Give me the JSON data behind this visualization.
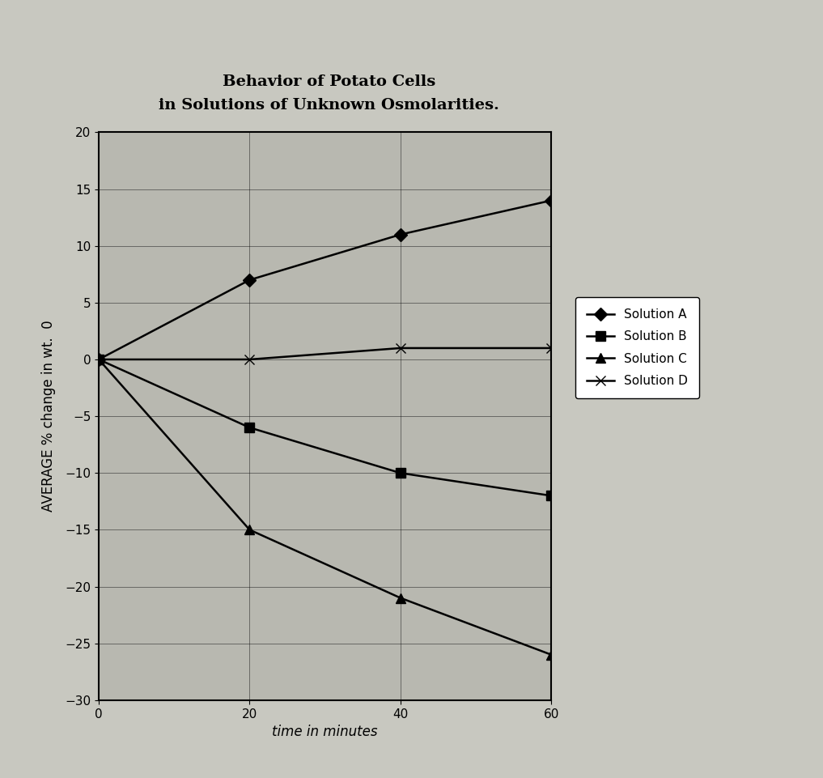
{
  "title_line1": "Behavior of Potato Cells",
  "title_line2": "in Solutions of Unknown Osmolarities.",
  "xlabel": "time in minutes",
  "ylabel": "AVERAGE % change in wt.  0",
  "xlim": [
    0,
    60
  ],
  "ylim": [
    -30,
    20
  ],
  "yticks": [
    20,
    15,
    10,
    5,
    0,
    -5,
    -10,
    -15,
    -20,
    -25,
    -30
  ],
  "xticks": [
    0,
    20,
    40,
    60
  ],
  "series": {
    "Solution A": {
      "x": [
        0,
        20,
        40,
        60
      ],
      "y": [
        0,
        7,
        11,
        14
      ],
      "marker": "D",
      "color": "#000000",
      "markersize": 8,
      "linewidth": 1.8
    },
    "Solution B": {
      "x": [
        0,
        20,
        40,
        60
      ],
      "y": [
        0,
        -6,
        -10,
        -12
      ],
      "marker": "s",
      "color": "#000000",
      "markersize": 8,
      "linewidth": 1.8
    },
    "Solution C": {
      "x": [
        0,
        20,
        40,
        60
      ],
      "y": [
        0,
        -15,
        -21,
        -26
      ],
      "marker": "^",
      "color": "#000000",
      "markersize": 8,
      "linewidth": 1.8
    },
    "Solution D": {
      "x": [
        0,
        20,
        40,
        60
      ],
      "y": [
        0,
        0,
        1,
        1
      ],
      "marker": "x",
      "color": "#000000",
      "markersize": 8,
      "linewidth": 1.8
    }
  },
  "legend_labels": [
    "Solution A",
    "Solution B",
    "Solution C",
    "Solution D"
  ],
  "legend_markers": [
    "D",
    "s",
    "^",
    "x"
  ],
  "background_color": "#c8c8c0",
  "plot_bg_color": "#b8b8b0",
  "title_fontsize": 14,
  "axis_label_fontsize": 12,
  "tick_fontsize": 11,
  "legend_fontsize": 11
}
